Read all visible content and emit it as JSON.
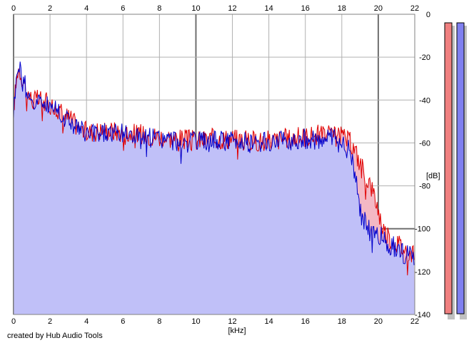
{
  "chart_data": {
    "type": "area",
    "xlabel": "[kHz]",
    "ylabel": "[dB]",
    "xlim": [
      0,
      22
    ],
    "ylim": [
      -140,
      0
    ],
    "x_ticks": [
      0,
      2,
      4,
      6,
      8,
      10,
      12,
      14,
      16,
      18,
      20,
      22
    ],
    "y_ticks": [
      0,
      -20,
      -40,
      -60,
      -80,
      -100,
      -120,
      -140
    ],
    "grid": true,
    "credit": "created by Hub Audio Tools",
    "colors": {
      "left": "#e00000",
      "right": "#0000cc",
      "left_fill": "#f4b8c4",
      "right_fill": "#c0c0f8",
      "left_meter": "#f08080",
      "right_meter": "#8080f0"
    },
    "series": [
      {
        "color": "#e00000",
        "x": [
          0,
          0.25,
          0.5,
          0.75,
          1,
          1.5,
          2,
          2.5,
          3,
          3.5,
          4,
          5,
          6,
          7,
          8,
          9,
          10,
          11,
          12,
          13,
          14,
          15,
          16,
          17,
          17.5,
          18,
          18.5,
          18.8,
          19,
          19.3,
          19.6,
          19.9,
          20.2,
          20.5,
          21,
          21.5,
          22
        ],
        "y": [
          -44,
          -24,
          -30,
          -36,
          -40,
          -40,
          -42,
          -45,
          -48,
          -52,
          -55,
          -54,
          -55,
          -56,
          -57,
          -58,
          -59,
          -58,
          -58,
          -59,
          -59,
          -58,
          -57,
          -56,
          -57,
          -57,
          -60,
          -65,
          -70,
          -75,
          -80,
          -88,
          -98,
          -104,
          -106,
          -110,
          -113
        ]
      },
      {
        "color": "#0000cc",
        "x": [
          0,
          0.25,
          0.5,
          0.75,
          1,
          1.5,
          2,
          2.5,
          3,
          3.5,
          4,
          5,
          6,
          7,
          8,
          9,
          10,
          11,
          12,
          13,
          14,
          15,
          16,
          17,
          17.5,
          18,
          18.5,
          18.8,
          19,
          19.3,
          19.6,
          19.9,
          20.2,
          20.5,
          21,
          21.5,
          22
        ],
        "y": [
          -45,
          -22,
          -30,
          -36,
          -40,
          -41,
          -42,
          -45,
          -49,
          -53,
          -56,
          -55,
          -56,
          -57,
          -58,
          -59,
          -60,
          -59,
          -59,
          -60,
          -60,
          -59,
          -58,
          -58,
          -58,
          -60,
          -64,
          -78,
          -92,
          -98,
          -101,
          -103,
          -104,
          -107,
          -109,
          -112,
          -114
        ]
      }
    ]
  }
}
